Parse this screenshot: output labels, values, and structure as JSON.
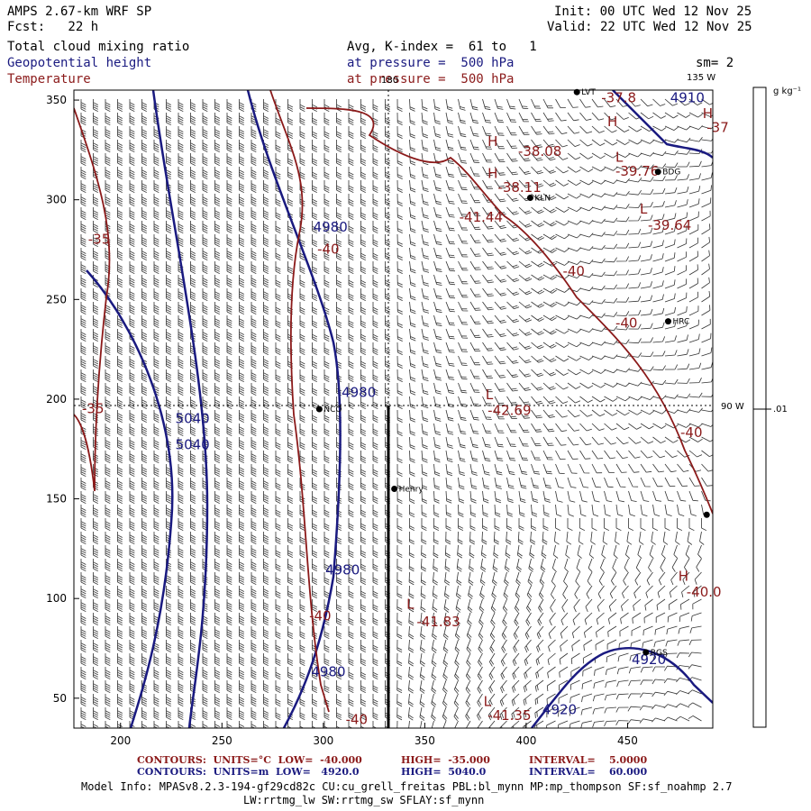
{
  "header": {
    "title": "AMPS 2.67-km WRF SP",
    "forecast": "Fcst:   22 h",
    "init": "Init: 00 UTC Wed 12 Nov 25",
    "valid": "Valid: 22 UTC Wed 12 Nov 25"
  },
  "fields": {
    "shaded": "Total cloud mixing ratio",
    "contour1": "Geopotential height",
    "contour2": "Temperature",
    "avg": "Avg, K-index =  61 to   1",
    "pressure1": "at pressure =  500 hPa",
    "pressure2": "at pressure =  500 hPa",
    "smoothing": "sm= 2"
  },
  "map": {
    "x_ticks": [
      "200",
      "250",
      "300",
      "350",
      "400",
      "450"
    ],
    "y_ticks": [
      "350",
      "300",
      "250",
      "200",
      "150",
      "100",
      "50"
    ],
    "meridian_180": "180",
    "meridian_135w": "135 W",
    "meridian_90w": "90 W",
    "x_range": [
      177,
      492
    ],
    "y_range": [
      35,
      355
    ],
    "stations": [
      {
        "name": "LVT",
        "x": 425,
        "y": 354
      },
      {
        "name": "BDG",
        "x": 465,
        "y": 314
      },
      {
        "name": "KLN",
        "x": 402,
        "y": 301
      },
      {
        "name": "HRC",
        "x": 470,
        "y": 239
      },
      {
        "name": "NCO",
        "x": 298,
        "y": 195
      },
      {
        "name": "Henry",
        "x": 335,
        "y": 155
      },
      {
        "name": "",
        "x": 489,
        "y": 142
      },
      {
        "name": "RGS",
        "x": 459,
        "y": 73
      }
    ],
    "temperature_labels": [
      {
        "text": "-37.8",
        "x": 437,
        "y": 349
      },
      {
        "text": "H",
        "x": 440,
        "y": 337
      },
      {
        "text": "-38.08",
        "x": 396,
        "y": 322
      },
      {
        "text": "H",
        "x": 381,
        "y": 327
      },
      {
        "text": "H",
        "x": 381,
        "y": 311
      },
      {
        "text": "-38.11",
        "x": 386,
        "y": 304
      },
      {
        "text": "L",
        "x": 444,
        "y": 319
      },
      {
        "text": "-39.76",
        "x": 444,
        "y": 312
      },
      {
        "text": "-41.44",
        "x": 367,
        "y": 289
      },
      {
        "text": "L",
        "x": 456,
        "y": 293
      },
      {
        "text": "-39.64",
        "x": 460,
        "y": 285
      },
      {
        "text": "-40",
        "x": 418,
        "y": 262
      },
      {
        "text": "-40",
        "x": 444,
        "y": 236
      },
      {
        "text": "-35",
        "x": 184,
        "y": 278
      },
      {
        "text": "-40",
        "x": 297,
        "y": 273
      },
      {
        "text": "-35",
        "x": 181,
        "y": 193
      },
      {
        "text": "L",
        "x": 380,
        "y": 200
      },
      {
        "text": "-42.69",
        "x": 381,
        "y": 192
      },
      {
        "text": "-40",
        "x": 476,
        "y": 181
      },
      {
        "text": "H",
        "x": 475,
        "y": 109
      },
      {
        "text": "-40.0",
        "x": 479,
        "y": 101
      },
      {
        "text": "-40",
        "x": 293,
        "y": 89
      },
      {
        "text": "L",
        "x": 341,
        "y": 95
      },
      {
        "text": "-41.83",
        "x": 346,
        "y": 86
      },
      {
        "text": "L",
        "x": 379,
        "y": 46
      },
      {
        "text": "-41.35",
        "x": 381,
        "y": 39
      },
      {
        "text": "-40",
        "x": 311,
        "y": 37
      },
      {
        "text": "-37",
        "x": 489,
        "y": 334
      },
      {
        "text": "H",
        "x": 487,
        "y": 341
      }
    ],
    "height_labels": [
      {
        "text": "4980",
        "x": 295,
        "y": 284
      },
      {
        "text": "4980",
        "x": 309,
        "y": 201
      },
      {
        "text": "5040",
        "x": 227,
        "y": 188
      },
      {
        "text": "5040",
        "x": 227,
        "y": 175
      },
      {
        "text": "4980",
        "x": 301,
        "y": 112
      },
      {
        "text": "4980",
        "x": 294,
        "y": 61
      },
      {
        "text": "4920",
        "x": 452,
        "y": 67
      },
      {
        "text": "4920",
        "x": 408,
        "y": 42
      },
      {
        "text": "4910",
        "x": 471,
        "y": 349
      }
    ],
    "colorbar": {
      "unit": "g kg⁻¹",
      "tick": ".01"
    }
  },
  "footer": {
    "c1_lead": "CONTOURS:  UNITS=°C  LOW=  -40.000",
    "c1_high": "HIGH=  -35.000",
    "c1_int": "INTERVAL=    5.0000",
    "c2_lead": "CONTOURS:  UNITS=m  LOW=   4920.0",
    "c2_high": "HIGH=  5040.0",
    "c2_int": "INTERVAL=    60.000",
    "model1": "Model Info: MPASv8.2.3-194-gf29cd82c CU:cu_grell_freitas PBL:bl_mynn MP:mp_thompson SF:sf_noahmp 2.7",
    "model2": "LW:rrtmg_lw SW:rrtmg_sw SFLAY:sf_mynn"
  },
  "colors": {
    "temperature": "#8b1a1a",
    "height": "#1a1a80"
  }
}
